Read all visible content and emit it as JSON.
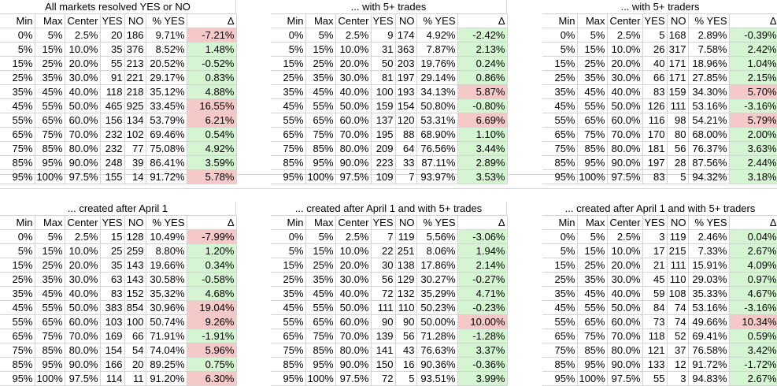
{
  "columns": [
    "Min",
    "Max",
    "Center",
    "YES",
    "NO",
    "% YES",
    "Δ"
  ],
  "tables": [
    {
      "title": "All markets resolved YES or NO",
      "rows": [
        [
          "0%",
          "5%",
          "2.5%",
          "20",
          "186",
          "9.71%",
          "-7.21%"
        ],
        [
          "5%",
          "15%",
          "10.0%",
          "35",
          "376",
          "8.52%",
          "1.48%"
        ],
        [
          "15%",
          "25%",
          "20.0%",
          "55",
          "213",
          "20.52%",
          "-0.52%"
        ],
        [
          "25%",
          "35%",
          "30.0%",
          "91",
          "221",
          "29.17%",
          "0.83%"
        ],
        [
          "35%",
          "45%",
          "40.0%",
          "118",
          "218",
          "35.12%",
          "4.88%"
        ],
        [
          "45%",
          "55%",
          "50.0%",
          "465",
          "925",
          "33.45%",
          "16.55%"
        ],
        [
          "55%",
          "65%",
          "60.0%",
          "156",
          "134",
          "53.79%",
          "6.21%"
        ],
        [
          "65%",
          "75%",
          "70.0%",
          "232",
          "102",
          "69.46%",
          "0.54%"
        ],
        [
          "75%",
          "85%",
          "80.0%",
          "232",
          "77",
          "75.08%",
          "4.92%"
        ],
        [
          "85%",
          "95%",
          "90.0%",
          "248",
          "39",
          "86.41%",
          "3.59%"
        ],
        [
          "95%",
          "100%",
          "97.5%",
          "155",
          "14",
          "91.72%",
          "5.78%"
        ]
      ],
      "delta_color": [
        "neg",
        "pos",
        "pos",
        "pos",
        "pos",
        "neg",
        "neg",
        "pos",
        "pos",
        "pos",
        "neg"
      ]
    },
    {
      "title": "... with 5+ trades",
      "rows": [
        [
          "0%",
          "5%",
          "2.5%",
          "9",
          "174",
          "4.92%",
          "-2.42%"
        ],
        [
          "5%",
          "15%",
          "10.0%",
          "31",
          "363",
          "7.87%",
          "2.13%"
        ],
        [
          "15%",
          "25%",
          "20.0%",
          "50",
          "203",
          "19.76%",
          "0.24%"
        ],
        [
          "25%",
          "35%",
          "30.0%",
          "81",
          "197",
          "29.14%",
          "0.86%"
        ],
        [
          "35%",
          "45%",
          "40.0%",
          "100",
          "193",
          "34.13%",
          "5.87%"
        ],
        [
          "45%",
          "55%",
          "50.0%",
          "159",
          "154",
          "50.80%",
          "-0.80%"
        ],
        [
          "55%",
          "65%",
          "60.0%",
          "137",
          "120",
          "53.31%",
          "6.69%"
        ],
        [
          "65%",
          "75%",
          "70.0%",
          "195",
          "88",
          "68.90%",
          "1.10%"
        ],
        [
          "75%",
          "85%",
          "80.0%",
          "209",
          "64",
          "76.56%",
          "3.44%"
        ],
        [
          "85%",
          "95%",
          "90.0%",
          "223",
          "33",
          "87.11%",
          "2.89%"
        ],
        [
          "95%",
          "100%",
          "97.5%",
          "109",
          "7",
          "93.97%",
          "3.53%"
        ]
      ],
      "delta_color": [
        "pos",
        "pos",
        "pos",
        "pos",
        "neg",
        "pos",
        "neg",
        "pos",
        "pos",
        "pos",
        "pos"
      ]
    },
    {
      "title": "... with 5+ traders",
      "rows": [
        [
          "0%",
          "5%",
          "2.5%",
          "5",
          "168",
          "2.89%",
          "-0.39%"
        ],
        [
          "5%",
          "15%",
          "10.0%",
          "26",
          "317",
          "7.58%",
          "2.42%"
        ],
        [
          "15%",
          "25%",
          "20.0%",
          "40",
          "171",
          "18.96%",
          "1.04%"
        ],
        [
          "25%",
          "35%",
          "30.0%",
          "66",
          "171",
          "27.85%",
          "2.15%"
        ],
        [
          "35%",
          "45%",
          "40.0%",
          "83",
          "159",
          "34.30%",
          "5.70%"
        ],
        [
          "45%",
          "55%",
          "50.0%",
          "126",
          "111",
          "53.16%",
          "-3.16%"
        ],
        [
          "55%",
          "65%",
          "60.0%",
          "116",
          "98",
          "54.21%",
          "5.79%"
        ],
        [
          "65%",
          "75%",
          "70.0%",
          "170",
          "80",
          "68.00%",
          "2.00%"
        ],
        [
          "75%",
          "85%",
          "80.0%",
          "181",
          "56",
          "76.37%",
          "3.63%"
        ],
        [
          "85%",
          "95%",
          "90.0%",
          "197",
          "28",
          "87.56%",
          "2.44%"
        ],
        [
          "95%",
          "100%",
          "97.5%",
          "83",
          "5",
          "94.32%",
          "3.18%"
        ]
      ],
      "delta_color": [
        "pos",
        "pos",
        "pos",
        "pos",
        "neg",
        "pos",
        "neg",
        "pos",
        "pos",
        "pos",
        "pos"
      ]
    },
    {
      "title": "... created after April 1",
      "rows": [
        [
          "0%",
          "5%",
          "2.5%",
          "15",
          "128",
          "10.49%",
          "-7.99%"
        ],
        [
          "5%",
          "15%",
          "10.0%",
          "25",
          "259",
          "8.80%",
          "1.20%"
        ],
        [
          "15%",
          "25%",
          "20.0%",
          "35",
          "143",
          "19.66%",
          "0.34%"
        ],
        [
          "25%",
          "35%",
          "30.0%",
          "63",
          "143",
          "30.58%",
          "-0.58%"
        ],
        [
          "35%",
          "45%",
          "40.0%",
          "83",
          "152",
          "35.32%",
          "4.68%"
        ],
        [
          "45%",
          "55%",
          "50.0%",
          "383",
          "854",
          "30.96%",
          "19.04%"
        ],
        [
          "55%",
          "65%",
          "60.0%",
          "103",
          "100",
          "50.74%",
          "9.26%"
        ],
        [
          "65%",
          "75%",
          "70.0%",
          "169",
          "66",
          "71.91%",
          "-1.91%"
        ],
        [
          "75%",
          "85%",
          "80.0%",
          "154",
          "54",
          "74.04%",
          "5.96%"
        ],
        [
          "85%",
          "95%",
          "90.0%",
          "166",
          "20",
          "89.25%",
          "0.75%"
        ],
        [
          "95%",
          "100%",
          "97.5%",
          "114",
          "11",
          "91.20%",
          "6.30%"
        ]
      ],
      "delta_color": [
        "neg",
        "pos",
        "pos",
        "pos",
        "pos",
        "neg",
        "neg",
        "pos",
        "neg",
        "pos",
        "neg"
      ]
    },
    {
      "title": "... created after April 1 and with 5+ trades",
      "rows": [
        [
          "0%",
          "5%",
          "2.5%",
          "7",
          "119",
          "5.56%",
          "-3.06%"
        ],
        [
          "5%",
          "15%",
          "10.0%",
          "22",
          "251",
          "8.06%",
          "1.94%"
        ],
        [
          "15%",
          "25%",
          "20.0%",
          "30",
          "138",
          "17.86%",
          "2.14%"
        ],
        [
          "25%",
          "35%",
          "30.0%",
          "56",
          "129",
          "30.27%",
          "-0.27%"
        ],
        [
          "35%",
          "45%",
          "40.0%",
          "72",
          "132",
          "35.29%",
          "4.71%"
        ],
        [
          "45%",
          "55%",
          "50.0%",
          "111",
          "110",
          "50.23%",
          "-0.23%"
        ],
        [
          "55%",
          "65%",
          "60.0%",
          "90",
          "90",
          "50.00%",
          "10.00%"
        ],
        [
          "65%",
          "75%",
          "70.0%",
          "139",
          "56",
          "71.28%",
          "-1.28%"
        ],
        [
          "75%",
          "85%",
          "80.0%",
          "141",
          "43",
          "76.63%",
          "3.37%"
        ],
        [
          "85%",
          "95%",
          "90.0%",
          "150",
          "16",
          "90.36%",
          "-0.36%"
        ],
        [
          "95%",
          "100%",
          "97.5%",
          "72",
          "5",
          "93.51%",
          "3.99%"
        ]
      ],
      "delta_color": [
        "pos",
        "pos",
        "pos",
        "pos",
        "pos",
        "pos",
        "neg",
        "pos",
        "pos",
        "pos",
        "pos"
      ]
    },
    {
      "title": "... created after April 1 and with 5+ traders",
      "rows": [
        [
          "0%",
          "5%",
          "2.5%",
          "3",
          "119",
          "2.46%",
          "0.04%"
        ],
        [
          "5%",
          "15%",
          "10.0%",
          "17",
          "215",
          "7.33%",
          "2.67%"
        ],
        [
          "15%",
          "25%",
          "20.0%",
          "21",
          "111",
          "15.91%",
          "4.09%"
        ],
        [
          "25%",
          "35%",
          "30.0%",
          "45",
          "110",
          "29.03%",
          "0.97%"
        ],
        [
          "35%",
          "45%",
          "40.0%",
          "59",
          "108",
          "35.33%",
          "4.67%"
        ],
        [
          "45%",
          "55%",
          "50.0%",
          "84",
          "74",
          "53.16%",
          "-3.16%"
        ],
        [
          "55%",
          "65%",
          "60.0%",
          "73",
          "74",
          "49.66%",
          "10.34%"
        ],
        [
          "65%",
          "75%",
          "70.0%",
          "118",
          "52",
          "69.41%",
          "0.59%"
        ],
        [
          "75%",
          "85%",
          "80.0%",
          "121",
          "37",
          "76.58%",
          "3.42%"
        ],
        [
          "85%",
          "95%",
          "90.0%",
          "133",
          "12",
          "91.72%",
          "-1.72%"
        ],
        [
          "95%",
          "100%",
          "97.5%",
          "55",
          "3",
          "94.83%",
          "2.67%"
        ]
      ],
      "delta_color": [
        "pos",
        "pos",
        "pos",
        "pos",
        "pos",
        "pos",
        "neg",
        "pos",
        "pos",
        "pos",
        "pos"
      ]
    }
  ],
  "colors": {
    "pos": "#d5f5d2",
    "neg": "#f5c9c8",
    "grid": "#d4d4d4"
  }
}
